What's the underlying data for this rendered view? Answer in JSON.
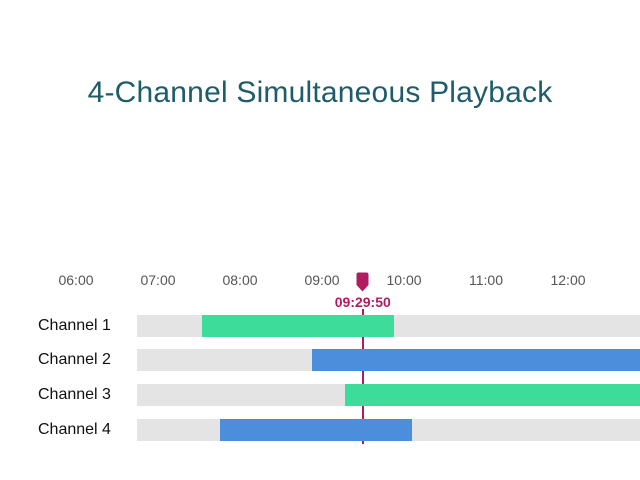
{
  "title": {
    "text": "4-Channel Simultaneous Playback",
    "color": "#1d5c68"
  },
  "chart_data": {
    "type": "gantt",
    "title": "4-Channel Simultaneous Playback",
    "x_ticks": [
      "06:00",
      "07:00",
      "08:00",
      "09:00",
      "10:00",
      "11:00",
      "12:00"
    ],
    "x_axis_start": "06:00",
    "playhead": {
      "time": "09:29:50",
      "marker": "bookmark-pin",
      "color": "#b01c62"
    },
    "channels": [
      {
        "label": "Channel 1",
        "start": "07:32",
        "end": "09:53",
        "clipped_right": false,
        "color_key": "green"
      },
      {
        "label": "Channel 2",
        "start": "08:53",
        "end": null,
        "clipped_right": true,
        "color_key": "blue"
      },
      {
        "label": "Channel 3",
        "start": "09:17",
        "end": null,
        "clipped_right": true,
        "color_key": "green"
      },
      {
        "label": "Channel 4",
        "start": "07:45",
        "end": "10:06",
        "clipped_right": false,
        "color_key": "blue"
      }
    ],
    "colors": {
      "green": "#3edc9b",
      "blue": "#4d8edc",
      "track": "#e4e4e4",
      "axis_text": "#555555",
      "label_text": "#111111"
    },
    "legend": null,
    "grid": false
  }
}
